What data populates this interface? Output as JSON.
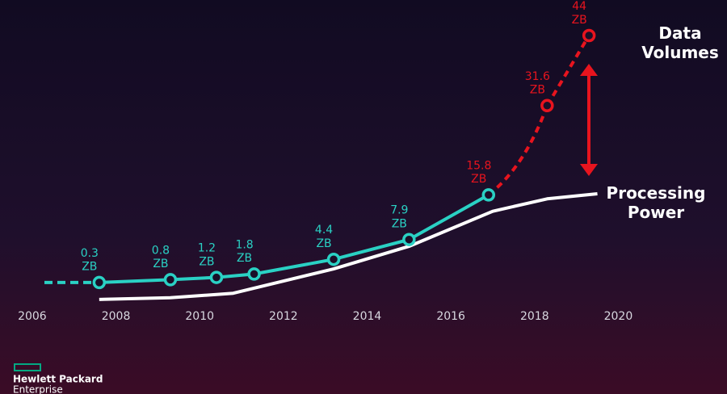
{
  "chart_data": {
    "type": "line",
    "x_unit": "year",
    "xlim": [
      2005.5,
      2022.5
    ],
    "xticks": [
      2006,
      2008,
      2010,
      2012,
      2014,
      2016,
      2018,
      2020
    ],
    "ylim": [
      -4,
      45
    ],
    "series": [
      {
        "color": "#2ad1c4",
        "x": [
          2007.6,
          2009.3,
          2010.4,
          2011.3,
          2013.2,
          2015.0,
          2016.9
        ],
        "values": [
          0.3,
          0.8,
          1.2,
          1.8,
          4.4,
          7.9,
          15.8
        ],
        "value_labels": [
          "0.3 ZB",
          "0.8 ZB",
          "1.2 ZB",
          "1.8 ZB",
          "4.4 ZB",
          "7.9 ZB",
          "15.8 ZB"
        ],
        "value_label_colors": [
          "#2ad1c4",
          "#2ad1c4",
          "#2ad1c4",
          "#2ad1c4",
          "#2ad1c4",
          "#2ad1c4",
          "#e8141e"
        ]
      },
      {
        "name": "Data Volumes",
        "color": "#e8141e",
        "x": [
          2018.3,
          2019.3
        ],
        "values": [
          31.6,
          44
        ],
        "value_labels": [
          "31.6 ZB",
          "44 ZB"
        ]
      },
      {
        "name": "Processing Power",
        "color": "#ffffff",
        "x": [
          2007.6,
          2009.3,
          2010.8,
          2013.2,
          2015.0,
          2017.0,
          2018.3,
          2019.5
        ],
        "values": [
          -2.7,
          -2.4,
          -1.6,
          2.7,
          6.7,
          12.9,
          15.1,
          16.0
        ]
      }
    ]
  },
  "logo": {
    "line1": "Hewlett Packard",
    "line2": "Enterprise"
  }
}
